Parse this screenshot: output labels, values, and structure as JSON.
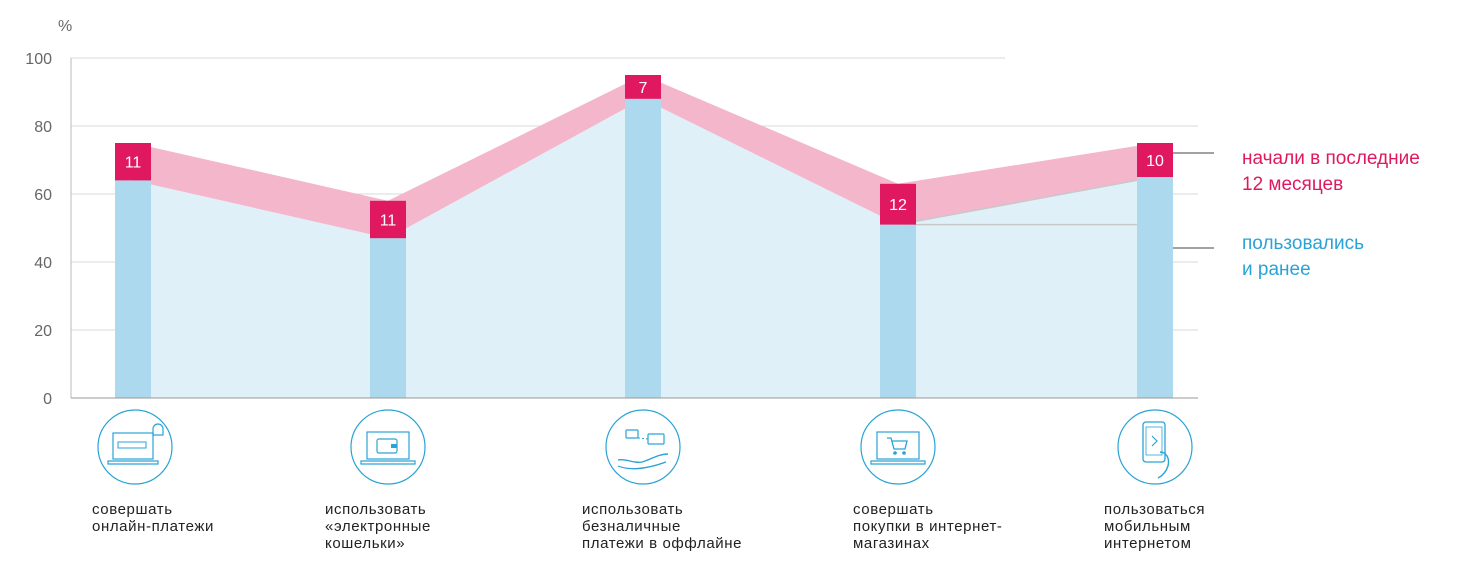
{
  "chart_data": {
    "type": "area",
    "unit_label": "%",
    "ylim": [
      0,
      100
    ],
    "y_ticks": [
      "0",
      "20",
      "40",
      "60",
      "80",
      "100"
    ],
    "categories": [
      {
        "lines": [
          "совершать",
          "онлайн-платежи"
        ],
        "icon": "laptop-pay-icon"
      },
      {
        "lines": [
          "использовать",
          "«электронные",
          "кошельки»"
        ],
        "icon": "laptop-wallet-icon"
      },
      {
        "lines": [
          "использовать",
          "безналичные",
          "платежи в оффлайне"
        ],
        "icon": "hand-card-icon"
      },
      {
        "lines": [
          "совершать",
          "покупки в интернет-",
          "магазинах"
        ],
        "icon": "laptop-cart-icon"
      },
      {
        "lines": [
          "пользоваться",
          "мобильным",
          "интернетом"
        ],
        "icon": "phone-hand-icon"
      }
    ],
    "series": [
      {
        "name": "пользовались и ранее",
        "legend_lines": [
          "пользовались",
          "и ранее"
        ],
        "color": "#29a3d6",
        "values": [
          64,
          47,
          88,
          51,
          65
        ]
      },
      {
        "name": "начали в последние 12 месяцев",
        "legend_lines": [
          "начали в последние",
          "12 месяцев"
        ],
        "color": "#e0185f",
        "values": [
          11,
          11,
          7,
          12,
          10
        ]
      }
    ],
    "grid": true
  }
}
